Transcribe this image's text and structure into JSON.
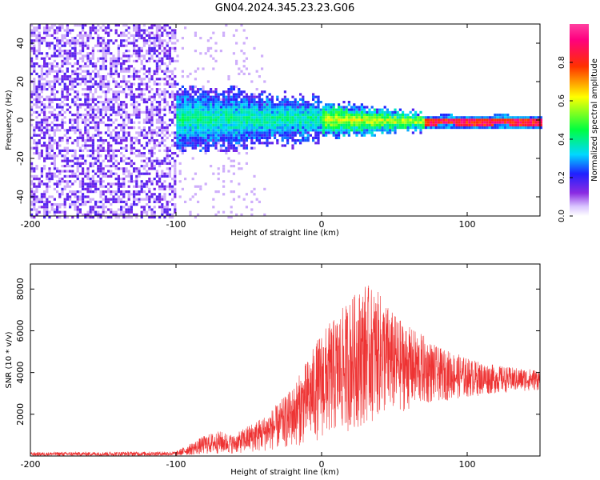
{
  "figure": {
    "title": "GN04.2024.345.23.23.G06"
  },
  "chart_data": [
    {
      "type": "heatmap",
      "xlabel": "Height of straight line (km)",
      "ylabel": "Frequency (Hz)",
      "xlim": [
        -200,
        150
      ],
      "ylim": [
        -50,
        50
      ],
      "xticks": [
        -200,
        -100,
        0,
        100
      ],
      "yticks": [
        -40,
        -20,
        0,
        20,
        40
      ],
      "colorbar": {
        "label": "Normalized spectral amplitude",
        "range": [
          0,
          1
        ],
        "ticks": [
          "0.0",
          "0.2",
          "0.4",
          "0.6",
          "0.8"
        ],
        "tick_values": [
          0.0,
          0.2,
          0.4,
          0.6,
          0.8
        ],
        "colormap": "rainbow (white-purple-blue-cyan-green-yellow-red-magenta)"
      },
      "regions": [
        {
          "x_range": [
            -200,
            -100
          ],
          "freq_range": [
            -50,
            50
          ],
          "amplitude": "0.05-0.20 (broadband noise)"
        },
        {
          "x_range": [
            -100,
            0
          ],
          "freq_range": [
            -15,
            12
          ],
          "amplitude": "0.15-0.40"
        },
        {
          "x_range": [
            0,
            70
          ],
          "freq_range": [
            -8,
            6
          ],
          "amplitude": "0.30-0.60"
        },
        {
          "x_range": [
            70,
            150
          ],
          "freq_range": [
            -2,
            2
          ],
          "amplitude": "0.70-0.95 (narrow line near 0 Hz)"
        }
      ]
    },
    {
      "type": "line",
      "xlabel": "Height of straight line (km)",
      "ylabel": "SNR (10 * v/v)",
      "xlim": [
        -200,
        150
      ],
      "ylim": [
        0,
        9200
      ],
      "xticks": [
        -200,
        -100,
        0,
        100
      ],
      "yticks": [
        2000,
        4000,
        6000,
        8000
      ],
      "color": "#ee3333",
      "envelope": {
        "x": [
          -200,
          -100,
          -90,
          -80,
          -70,
          -60,
          -50,
          -40,
          -30,
          -20,
          -10,
          0,
          10,
          20,
          30,
          40,
          50,
          60,
          70,
          80,
          90,
          100,
          110,
          120,
          130,
          140,
          150
        ],
        "upper": [
          180,
          220,
          600,
          1000,
          1200,
          1000,
          1500,
          1900,
          2500,
          3300,
          4600,
          6000,
          6700,
          7600,
          8300,
          7800,
          6800,
          6200,
          5800,
          5200,
          5000,
          4700,
          4500,
          4350,
          4250,
          4200,
          4150
        ],
        "lower": [
          0,
          0,
          40,
          80,
          100,
          120,
          150,
          220,
          300,
          400,
          600,
          800,
          1000,
          1200,
          1500,
          1800,
          2000,
          2200,
          2400,
          2600,
          2700,
          2800,
          2900,
          3000,
          3050,
          3100,
          3150
        ]
      }
    }
  ]
}
